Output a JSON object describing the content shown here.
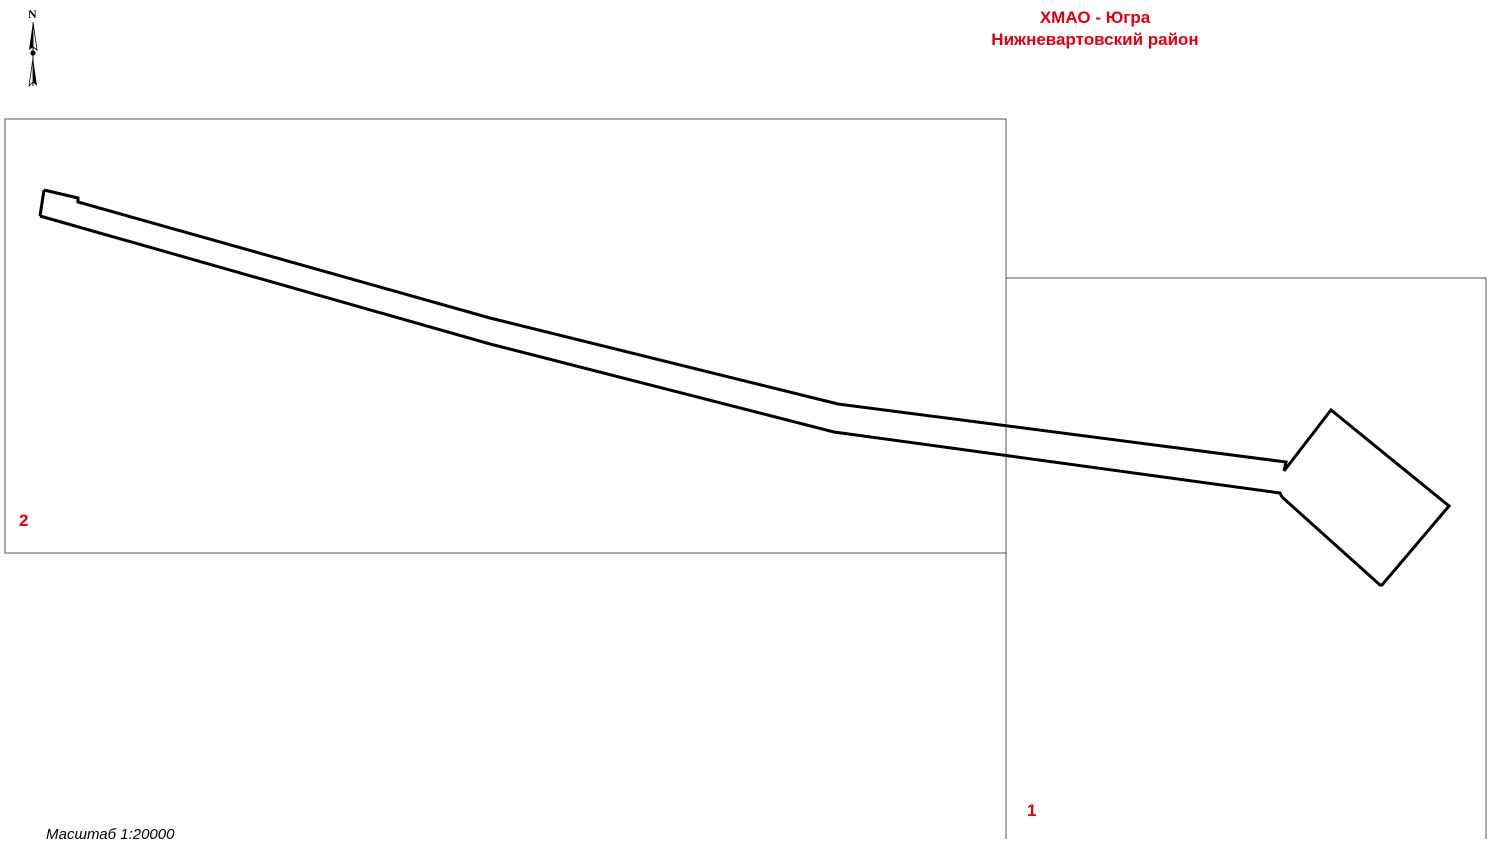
{
  "title": {
    "line1": "ХМАО - Югра",
    "line2": "Нижневартовский район",
    "color": "#e0000f"
  },
  "north_arrow": {
    "letter": "N",
    "icon": "north-arrow-icon"
  },
  "sheets": [
    {
      "number": "2"
    },
    {
      "number": "1"
    }
  ],
  "scale": {
    "label": "Масштаб 1:20000"
  },
  "colors": {
    "sheet_frame": "#555555",
    "feature_outline": "#000000",
    "label_red": "#e0000f"
  }
}
